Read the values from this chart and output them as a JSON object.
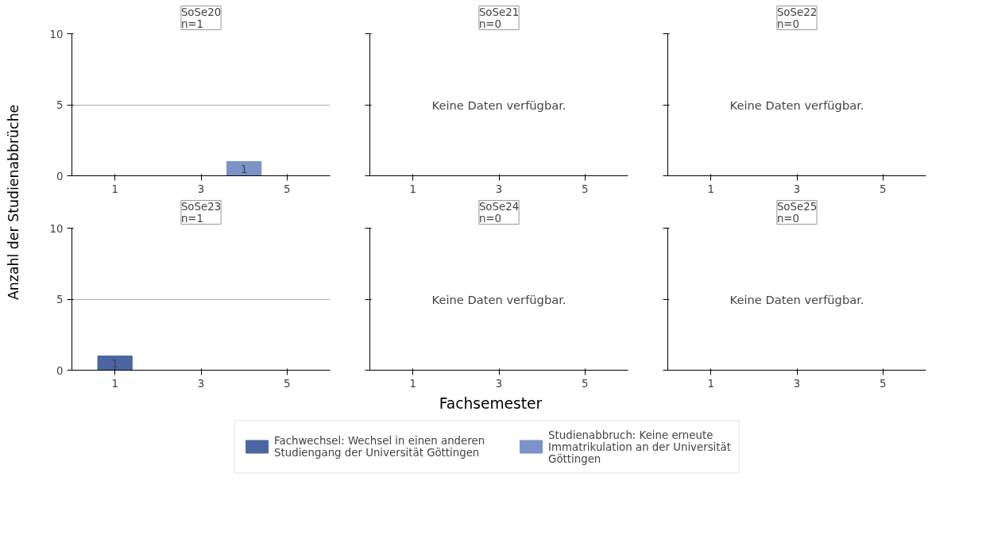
{
  "chart_data": [
    {
      "type": "bar",
      "title": "SoSe20\nn=1",
      "ylabel": "Anzahl der Studienabbrüche",
      "xlim": [
        0,
        6
      ],
      "xticks": [
        1,
        3,
        5
      ],
      "ylim": [
        0,
        10
      ],
      "yticks": [
        0,
        5,
        10
      ],
      "grid": "y",
      "data_labels": true,
      "legend": "bottom",
      "series": [
        {
          "name": "Studienabbruch: Keine erneute Immatrikulation an der Universität Göttingen",
          "color": "#7b93c8",
          "x": [
            4
          ],
          "values": [
            1
          ]
        }
      ]
    },
    {
      "type": "bar",
      "title": "SoSe21\nn=0",
      "xlim": [
        0,
        6
      ],
      "xticks": [
        1,
        3,
        5
      ],
      "ylim": [
        0,
        10
      ],
      "yticks": [
        0,
        5,
        10
      ],
      "tick_labels": "x",
      "annotations": [
        "Keine Daten verfügbar."
      ]
    },
    {
      "type": "bar",
      "title": "SoSe22\nn=0",
      "xlim": [
        0,
        6
      ],
      "xticks": [
        1,
        3,
        5
      ],
      "ylim": [
        0,
        10
      ],
      "yticks": [
        0,
        5,
        10
      ],
      "tick_labels": "x",
      "annotations": [
        "Keine Daten verfügbar."
      ]
    },
    {
      "type": "bar",
      "title": "SoSe23\nn=1",
      "xlim": [
        0,
        6
      ],
      "xticks": [
        1,
        3,
        5
      ],
      "ylim": [
        0,
        10
      ],
      "yticks": [
        0,
        5,
        10
      ],
      "grid": "y",
      "data_labels": true,
      "legend": "bottom",
      "series": [
        {
          "name": "Fachwechsel: Wechsel in einen anderen Studiengang der Universität Göttingen",
          "color": "#4c66a4",
          "x": [
            1
          ],
          "values": [
            1
          ]
        }
      ]
    },
    {
      "type": "bar",
      "title": "SoSe24\nn=0",
      "xlabel": "Fachsemester",
      "xlim": [
        0,
        6
      ],
      "xticks": [
        1,
        3,
        5
      ],
      "ylim": [
        0,
        10
      ],
      "yticks": [
        0,
        5,
        10
      ],
      "tick_labels": "x",
      "annotations": [
        "Keine Daten verfügbar."
      ]
    },
    {
      "type": "bar",
      "title": "SoSe25\nn=0",
      "xlim": [
        0,
        6
      ],
      "xticks": [
        1,
        3,
        5
      ],
      "ylim": [
        0,
        10
      ],
      "yticks": [
        0,
        5,
        10
      ],
      "tick_labels": "x",
      "annotations": [
        "Keine Daten verfügbar."
      ]
    }
  ]
}
